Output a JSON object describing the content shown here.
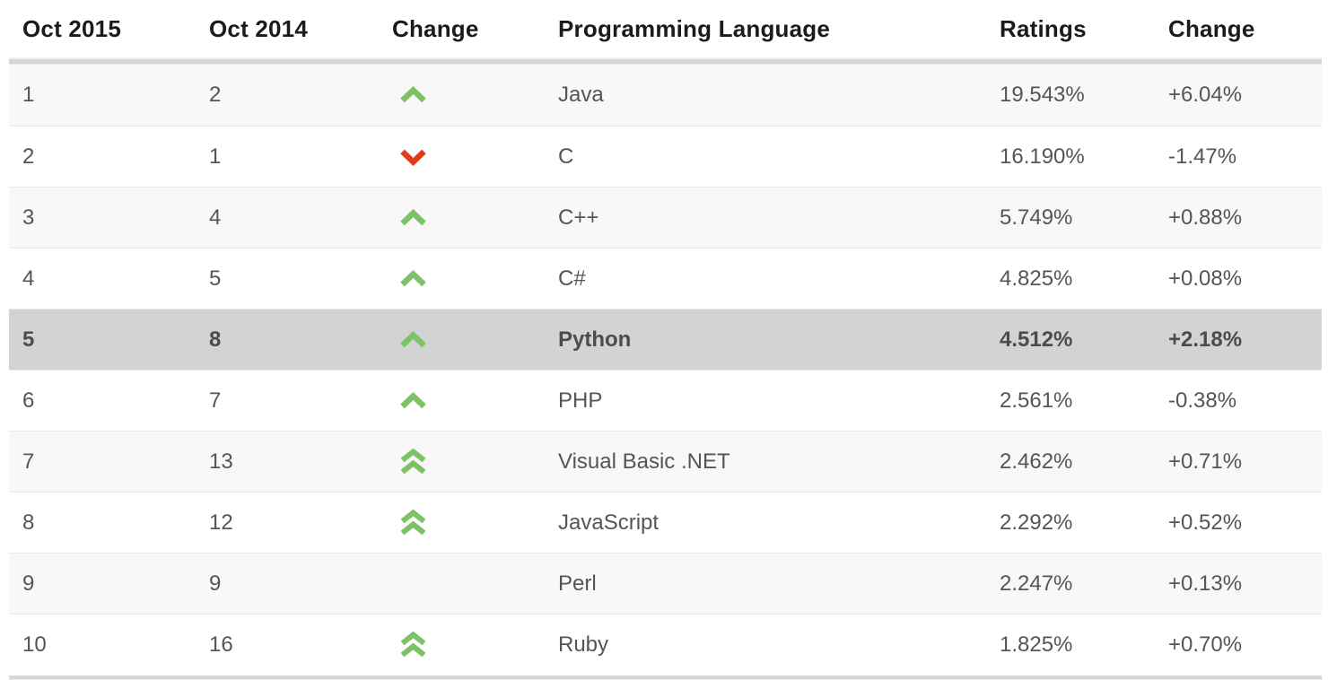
{
  "table": {
    "headers": [
      "Oct 2015",
      "Oct 2014",
      "Change",
      "Programming Language",
      "Ratings",
      "Change"
    ],
    "rows": [
      {
        "pos2015": "1",
        "pos2014": "2",
        "change": "up",
        "language": "Java",
        "ratings": "19.543%",
        "delta": "+6.04%",
        "highlight": false
      },
      {
        "pos2015": "2",
        "pos2014": "1",
        "change": "down",
        "language": "C",
        "ratings": "16.190%",
        "delta": "-1.47%",
        "highlight": false
      },
      {
        "pos2015": "3",
        "pos2014": "4",
        "change": "up",
        "language": "C++",
        "ratings": "5.749%",
        "delta": "+0.88%",
        "highlight": false
      },
      {
        "pos2015": "4",
        "pos2014": "5",
        "change": "up",
        "language": "C#",
        "ratings": "4.825%",
        "delta": "+0.08%",
        "highlight": false
      },
      {
        "pos2015": "5",
        "pos2014": "8",
        "change": "up",
        "language": "Python",
        "ratings": "4.512%",
        "delta": "+2.18%",
        "highlight": true
      },
      {
        "pos2015": "6",
        "pos2014": "7",
        "change": "up",
        "language": "PHP",
        "ratings": "2.561%",
        "delta": "-0.38%",
        "highlight": false
      },
      {
        "pos2015": "7",
        "pos2014": "13",
        "change": "up2",
        "language": "Visual Basic .NET",
        "ratings": "2.462%",
        "delta": "+0.71%",
        "highlight": false
      },
      {
        "pos2015": "8",
        "pos2014": "12",
        "change": "up2",
        "language": "JavaScript",
        "ratings": "2.292%",
        "delta": "+0.52%",
        "highlight": false
      },
      {
        "pos2015": "9",
        "pos2014": "9",
        "change": "none",
        "language": "Perl",
        "ratings": "2.247%",
        "delta": "+0.13%",
        "highlight": false
      },
      {
        "pos2015": "10",
        "pos2014": "16",
        "change": "up2",
        "language": "Ruby",
        "ratings": "1.825%",
        "delta": "+0.70%",
        "highlight": false
      }
    ]
  },
  "icons": {
    "up": "up-arrow-icon",
    "up2": "double-up-arrow-icon",
    "down": "down-arrow-icon"
  },
  "colors": {
    "up_arrow": "#7cc266",
    "down_arrow": "#df3d17",
    "highlight_row": "#d3d3d3",
    "stripe_row": "#f8f8f8",
    "header_text": "#1b1b1b",
    "body_text": "#555555"
  }
}
